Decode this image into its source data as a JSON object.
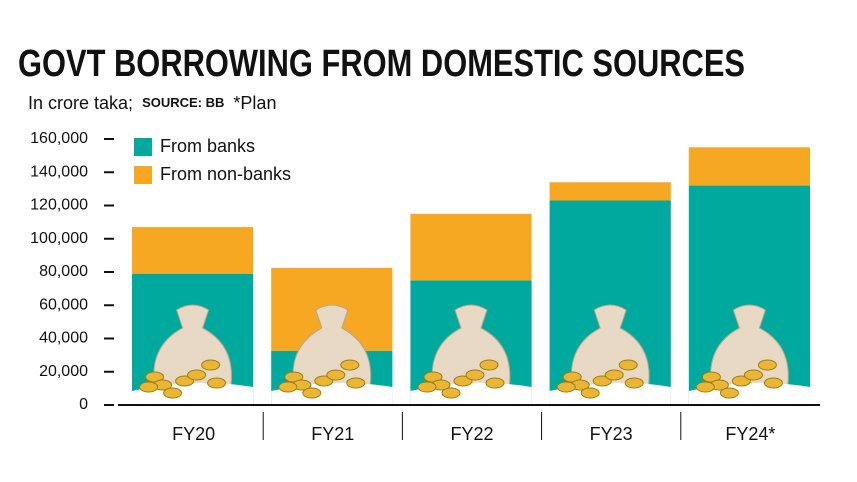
{
  "chart_data": {
    "type": "stacked-bar",
    "title": "GOVT BORROWING FROM DOMESTIC SOURCES",
    "subtitle": "In crore taka;",
    "source": "SOURCE: BB",
    "note": "*Plan",
    "categories": [
      "FY20",
      "FY21",
      "FY22",
      "FY23",
      "FY24*"
    ],
    "series": [
      {
        "name": "From banks",
        "color": "#00a99d",
        "values": [
          79000,
          32500,
          75000,
          123000,
          132000
        ]
      },
      {
        "name": "From non-banks",
        "color": "#f7a823",
        "values": [
          28000,
          50000,
          40000,
          11000,
          23000
        ]
      }
    ],
    "ylim": [
      0,
      160000
    ],
    "yticks": [
      0,
      {
        "value": 20000,
        "label": "20,000"
      },
      {
        "value": 40000,
        "label": "40,000"
      },
      {
        "value": 60000,
        "label": "60,000"
      },
      {
        "value": 80000,
        "label": "80,000"
      },
      {
        "value": 100000,
        "label": "100,000"
      },
      {
        "value": 120000,
        "label": "120,000"
      },
      {
        "value": 140000,
        "label": "140,000"
      },
      {
        "value": 160000,
        "label": "160,000"
      }
    ]
  }
}
